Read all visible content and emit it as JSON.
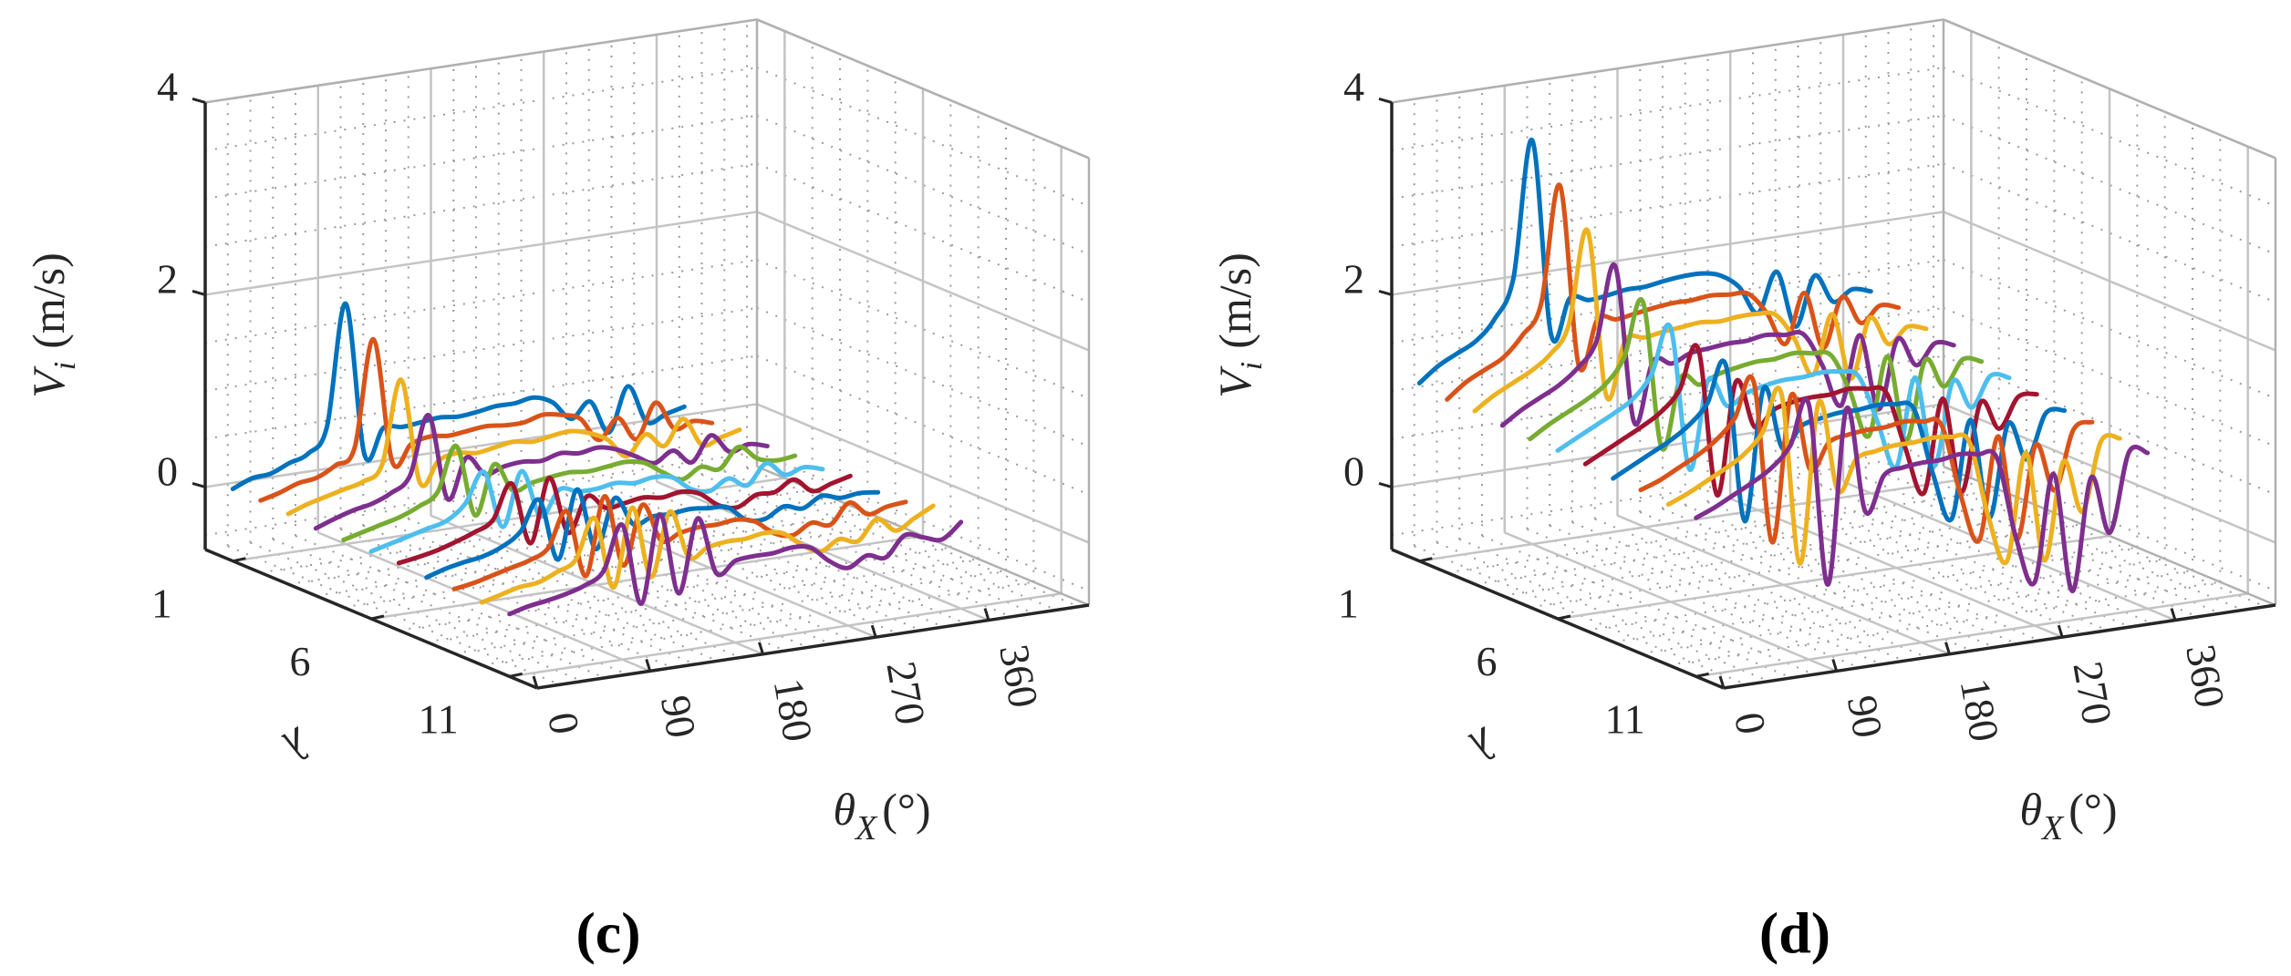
{
  "chart_data": [
    {
      "type": "line",
      "panel_label": "(c)",
      "projection": "3d-waterfall",
      "xlabel": {
        "symbol": "θ",
        "sub": "X",
        "unit": "(°)"
      },
      "ylabel": {
        "symbol": "λ"
      },
      "zlabel": {
        "symbol": "V",
        "sub": "i",
        "unit": "(m/s)"
      },
      "xlim": [
        0,
        440
      ],
      "ylim": [
        0,
        12
      ],
      "zlim": [
        -0.65,
        4
      ],
      "xticks": [
        0,
        90,
        180,
        270,
        360
      ],
      "yticks": [
        1,
        6,
        11
      ],
      "zticks": [
        0,
        2,
        4
      ],
      "grid": true,
      "minor_grid": true,
      "x": [
        0,
        15,
        30,
        45,
        60,
        75,
        90,
        105,
        120,
        135,
        150,
        165,
        180,
        195,
        210,
        225,
        240,
        255,
        270,
        285,
        300,
        315,
        330,
        345,
        360
      ],
      "series": [
        {
          "lambda": 1,
          "color": "#0072BD",
          "values": [
            0.1,
            0.18,
            0.2,
            0.28,
            0.35,
            0.6,
            1.85,
            0.25,
            0.5,
            0.48,
            0.5,
            0.52,
            0.5,
            0.52,
            0.55,
            0.55,
            0.58,
            0.5,
            0.3,
            0.45,
            0.1,
            0.55,
            0.15,
            0.2,
            0.25
          ]
        },
        {
          "lambda": 2,
          "color": "#D95319",
          "values": [
            0.1,
            0.15,
            0.22,
            0.25,
            0.35,
            0.5,
            1.6,
            0.3,
            0.45,
            0.5,
            0.48,
            0.5,
            0.52,
            0.5,
            0.5,
            0.55,
            0.52,
            0.45,
            0.2,
            0.4,
            0.15,
            0.5,
            0.2,
            0.25,
            0.2
          ]
        },
        {
          "lambda": 3,
          "color": "#EDB120",
          "values": [
            0.08,
            0.15,
            0.2,
            0.25,
            0.3,
            0.45,
            1.3,
            0.2,
            0.4,
            0.45,
            0.42,
            0.45,
            0.48,
            0.45,
            0.48,
            0.5,
            0.45,
            0.35,
            0.15,
            0.35,
            0.2,
            0.45,
            0.15,
            0.2,
            0.25
          ]
        },
        {
          "lambda": 4,
          "color": "#7E2F8E",
          "values": [
            0.05,
            0.12,
            0.18,
            0.22,
            0.3,
            0.45,
            1.05,
            0.15,
            0.55,
            0.35,
            0.4,
            0.42,
            0.4,
            0.45,
            0.42,
            0.45,
            0.4,
            0.3,
            0.2,
            0.3,
            0.15,
            0.4,
            0.2,
            0.25,
            0.2
          ]
        },
        {
          "lambda": 5,
          "color": "#77AC30",
          "values": [
            0.05,
            0.1,
            0.15,
            0.2,
            0.28,
            0.4,
            0.85,
            0.1,
            0.6,
            0.3,
            0.35,
            0.38,
            0.4,
            0.38,
            0.4,
            0.42,
            0.38,
            0.25,
            0.15,
            0.25,
            0.2,
            0.4,
            0.25,
            0.2,
            0.22
          ]
        },
        {
          "lambda": 6,
          "color": "#4DBEEE",
          "values": [
            0.05,
            0.1,
            0.15,
            0.2,
            0.25,
            0.4,
            0.7,
            0.1,
            0.65,
            0.15,
            0.4,
            0.35,
            0.35,
            0.38,
            0.35,
            0.38,
            0.35,
            0.2,
            0.15,
            0.25,
            0.15,
            0.35,
            0.2,
            0.25,
            0.2
          ]
        },
        {
          "lambda": 7,
          "color": "#A2142F",
          "values": [
            0.05,
            0.08,
            0.12,
            0.18,
            0.25,
            0.35,
            0.7,
            0.05,
            0.7,
            0.1,
            0.45,
            0.3,
            0.32,
            0.35,
            0.32,
            0.35,
            0.3,
            0.15,
            0.1,
            0.2,
            0.2,
            0.3,
            0.15,
            0.2,
            0.25
          ]
        },
        {
          "lambda": 8,
          "color": "#0072BD",
          "values": [
            0.02,
            0.08,
            0.12,
            0.15,
            0.22,
            0.35,
            0.65,
            0.0,
            0.7,
            0.05,
            0.55,
            0.25,
            0.3,
            0.3,
            0.32,
            0.3,
            0.28,
            0.12,
            0.1,
            0.2,
            0.15,
            0.25,
            0.2,
            0.22,
            0.2
          ]
        },
        {
          "lambda": 9,
          "color": "#D95319",
          "values": [
            0.02,
            0.05,
            0.1,
            0.15,
            0.2,
            0.3,
            0.65,
            -0.05,
            0.75,
            0.0,
            0.6,
            0.2,
            0.25,
            0.28,
            0.28,
            0.3,
            0.25,
            0.1,
            0.05,
            0.15,
            0.1,
            0.3,
            0.15,
            0.2,
            0.22
          ]
        },
        {
          "lambda": 10,
          "color": "#EDB120",
          "values": [
            0.0,
            0.05,
            0.1,
            0.12,
            0.2,
            0.3,
            0.7,
            -0.05,
            0.75,
            0.0,
            0.65,
            0.15,
            0.22,
            0.25,
            0.25,
            0.28,
            0.25,
            0.1,
            0.0,
            0.1,
            0.05,
            0.25,
            0.1,
            0.2,
            0.3
          ]
        },
        {
          "lambda": 11,
          "color": "#7E2F8E",
          "values": [
            0.0,
            0.05,
            0.08,
            0.12,
            0.18,
            0.3,
            0.75,
            -0.1,
            0.8,
            -0.05,
            0.7,
            0.1,
            0.2,
            0.22,
            0.22,
            0.25,
            0.22,
            0.05,
            -0.05,
            0.05,
            0.0,
            0.2,
            0.15,
            0.1,
            0.25
          ]
        }
      ]
    },
    {
      "type": "line",
      "panel_label": "(d)",
      "projection": "3d-waterfall",
      "xlabel": {
        "symbol": "θ",
        "sub": "X",
        "unit": "(°)"
      },
      "ylabel": {
        "symbol": "λ"
      },
      "zlabel": {
        "symbol": "V",
        "sub": "i",
        "unit": "(m/s)"
      },
      "xlim": [
        0,
        440
      ],
      "ylim": [
        0,
        12
      ],
      "zlim": [
        -0.65,
        4
      ],
      "xticks": [
        0,
        90,
        180,
        270,
        360
      ],
      "yticks": [
        1,
        6,
        11
      ],
      "zticks": [
        0,
        2,
        4
      ],
      "grid": true,
      "minor_grid": true,
      "x": [
        0,
        15,
        30,
        45,
        60,
        75,
        90,
        105,
        120,
        135,
        150,
        165,
        180,
        195,
        210,
        225,
        240,
        255,
        270,
        285,
        300,
        315,
        330,
        345,
        360
      ],
      "series": [
        {
          "lambda": 1,
          "color": "#0072BD",
          "values": [
            1.2,
            1.35,
            1.45,
            1.55,
            1.75,
            2.15,
            3.55,
            1.5,
            1.85,
            1.8,
            1.82,
            1.85,
            1.85,
            1.88,
            1.9,
            1.9,
            1.85,
            1.7,
            1.4,
            1.8,
            1.2,
            1.7,
            1.4,
            1.5,
            1.45
          ]
        },
        {
          "lambda": 2,
          "color": "#D95319",
          "values": [
            1.15,
            1.3,
            1.4,
            1.5,
            1.7,
            2.0,
            3.2,
            1.3,
            1.75,
            1.72,
            1.75,
            1.78,
            1.8,
            1.8,
            1.82,
            1.8,
            1.78,
            1.55,
            1.2,
            1.7,
            1.1,
            1.6,
            1.3,
            1.45,
            1.4
          ]
        },
        {
          "lambda": 3,
          "color": "#EDB120",
          "values": [
            1.15,
            1.28,
            1.38,
            1.48,
            1.62,
            1.9,
            2.85,
            1.1,
            1.65,
            1.65,
            1.68,
            1.7,
            1.72,
            1.7,
            1.72,
            1.72,
            1.68,
            1.4,
            1.0,
            1.6,
            0.9,
            1.5,
            1.2,
            1.35,
            1.3
          ]
        },
        {
          "lambda": 4,
          "color": "#7E2F8E",
          "values": [
            1.12,
            1.25,
            1.35,
            1.45,
            1.6,
            1.85,
            2.6,
            0.95,
            1.55,
            1.5,
            1.58,
            1.6,
            1.62,
            1.62,
            1.65,
            1.62,
            1.6,
            1.25,
            0.8,
            1.5,
            0.7,
            1.4,
            1.1,
            1.3,
            1.25
          ]
        },
        {
          "lambda": 5,
          "color": "#77AC30",
          "values": [
            1.1,
            1.22,
            1.32,
            1.42,
            1.55,
            1.8,
            2.35,
            0.8,
            1.5,
            1.4,
            1.48,
            1.52,
            1.55,
            1.55,
            1.58,
            1.55,
            1.5,
            1.1,
            0.6,
            1.4,
            0.5,
            1.3,
            1.0,
            1.25,
            1.2
          ]
        },
        {
          "lambda": 6,
          "color": "#4DBEEE",
          "values": [
            1.1,
            1.2,
            1.3,
            1.4,
            1.52,
            1.75,
            2.2,
            0.7,
            1.6,
            1.3,
            1.4,
            1.45,
            1.48,
            1.48,
            1.5,
            1.48,
            1.4,
            0.9,
            0.4,
            1.3,
            0.35,
            1.2,
            0.9,
            1.2,
            1.15
          ]
        },
        {
          "lambda": 7,
          "color": "#A2142F",
          "values": [
            1.08,
            1.18,
            1.28,
            1.38,
            1.5,
            1.7,
            2.1,
            0.55,
            1.7,
            1.2,
            1.35,
            1.4,
            1.42,
            1.42,
            1.45,
            1.42,
            1.35,
            0.75,
            0.25,
            1.2,
            0.2,
            1.1,
            0.8,
            1.1,
            1.1
          ]
        },
        {
          "lambda": 8,
          "color": "#0072BD",
          "values": [
            1.05,
            1.15,
            1.25,
            1.35,
            1.48,
            1.68,
            2.05,
            0.4,
            1.75,
            1.1,
            1.3,
            1.35,
            1.38,
            1.38,
            1.4,
            1.38,
            1.3,
            0.6,
            0.1,
            1.1,
            0.05,
            1.0,
            0.6,
            1.05,
            1.05
          ]
        },
        {
          "lambda": 9,
          "color": "#D95319",
          "values": [
            1.05,
            1.12,
            1.22,
            1.32,
            1.45,
            1.65,
            2.0,
            0.3,
            1.8,
            1.0,
            1.25,
            1.3,
            1.32,
            1.32,
            1.35,
            1.32,
            1.25,
            0.5,
            0.0,
            1.05,
            -0.05,
            0.9,
            0.4,
            1.0,
            1.05
          ]
        },
        {
          "lambda": 10,
          "color": "#EDB120",
          "values": [
            1.02,
            1.1,
            1.2,
            1.3,
            1.42,
            1.62,
            2.0,
            0.2,
            1.85,
            0.9,
            1.2,
            1.25,
            1.28,
            1.28,
            1.3,
            1.28,
            1.2,
            0.4,
            -0.1,
            1.0,
            -0.15,
            0.85,
            0.3,
            1.0,
            1.0
          ]
        },
        {
          "lambda": 11,
          "color": "#7E2F8E",
          "values": [
            1.0,
            1.08,
            1.18,
            1.28,
            1.4,
            1.6,
            2.0,
            0.1,
            1.9,
            0.8,
            1.15,
            1.2,
            1.22,
            1.22,
            1.25,
            1.22,
            1.15,
            0.3,
            -0.2,
            0.9,
            -0.35,
            0.8,
            0.2,
            1.0,
            0.97
          ]
        }
      ]
    }
  ]
}
